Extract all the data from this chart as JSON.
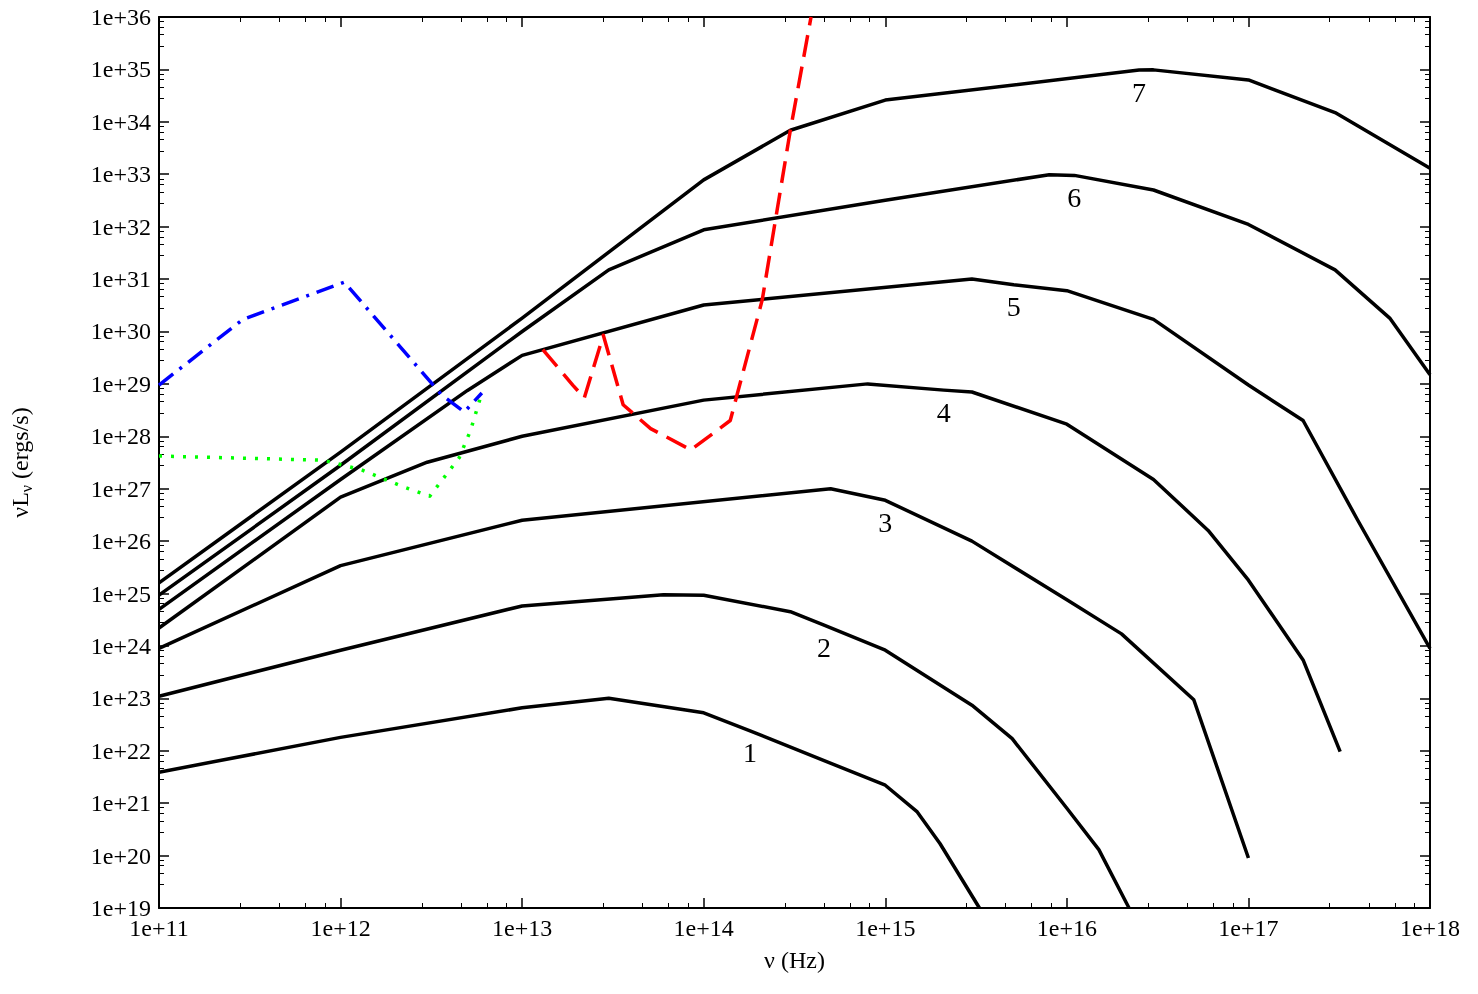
{
  "chart_data": {
    "type": "line",
    "xlabel": "ν (Hz)",
    "ylabel": "νL$_{ν}$ (ergs/s)",
    "log": "xy",
    "grid": false,
    "marker": "none",
    "xlim": [
      100000000000.0,
      1e+18
    ],
    "ylim": [
      1e+19,
      1e+36
    ],
    "xticks": [
      {
        "value": 100000000000.0,
        "label": "1e+11"
      },
      {
        "value": 1000000000000.0,
        "label": "1e+12"
      },
      {
        "value": 10000000000000.0,
        "label": "1e+13"
      },
      {
        "value": 100000000000000.0,
        "label": "1e+14"
      },
      {
        "value": 1000000000000000.0,
        "label": "1e+15"
      },
      {
        "value": 1e+16,
        "label": "1e+16"
      },
      {
        "value": 1e+17,
        "label": "1e+17"
      },
      {
        "value": 1e+18,
        "label": "1e+18"
      }
    ],
    "yticks": [
      {
        "value": 1e+19,
        "label": "1e+19"
      },
      {
        "value": 1e+20,
        "label": "1e+20"
      },
      {
        "value": 1e+21,
        "label": "1e+21"
      },
      {
        "value": 1e+22,
        "label": "1e+22"
      },
      {
        "value": 1e+23,
        "label": "1e+23"
      },
      {
        "value": 1e+24,
        "label": "1e+24"
      },
      {
        "value": 1e+25,
        "label": "1e+25"
      },
      {
        "value": 1e+26,
        "label": "1e+26"
      },
      {
        "value": 1e+27,
        "label": "1e+27"
      },
      {
        "value": 1e+28,
        "label": "1e+28"
      },
      {
        "value": 1e+29,
        "label": "1e+29"
      },
      {
        "value": 1e+30,
        "label": "1e+30"
      },
      {
        "value": 1e+31,
        "label": "1e+31"
      },
      {
        "value": 1e+32,
        "label": "1e+32"
      },
      {
        "value": 1e+33,
        "label": "1e+33"
      },
      {
        "value": 1e+34,
        "label": "1e+34"
      },
      {
        "value": 1e+35,
        "label": "1e+35"
      },
      {
        "value": 1e+36,
        "label": "1e+36"
      }
    ],
    "series": [
      {
        "color": "#000000",
        "line_style": "solid",
        "x": [
          100000000000.0,
          1000000000000.0,
          10000000000000.0,
          30000000000000.0,
          100000000000000.0,
          180000000000000.0,
          1000000000000000.0,
          1500000000000000.0,
          2000000000000000.0,
          3300000000000000.0
        ],
        "values": [
          3.9e+21,
          1.8e+22,
          6.6e+22,
          1e+23,
          5.3e+22,
          2.4e+22,
          2.2e+21,
          6.8e+20,
          1.7e+20,
          1e+19
        ]
      },
      {
        "color": "#000000",
        "line_style": "solid",
        "x": [
          100000000000.0,
          1000000000000.0,
          10000000000000.0,
          60000000000000.0,
          100000000000000.0,
          300000000000000.0,
          460000000000000.0,
          1000000000000000.0,
          3000000000000000.0,
          5000000000000000.0,
          1e+16,
          1.5e+16,
          2.2e+16
        ],
        "values": [
          1.1e+23,
          8.3e+23,
          5.8e+24,
          9.5e+24,
          9.3e+24,
          4.5e+24,
          2.5e+24,
          8.3e+23,
          7.4e+22,
          1.7e+22,
          8e+20,
          1.3e+20,
          1e+19
        ]
      },
      {
        "color": "#000000",
        "line_style": "solid",
        "x": [
          100000000000.0,
          1000000000000.0,
          10000000000000.0,
          500000000000000.0,
          1000000000000000.0,
          3000000000000000.0,
          1e+16,
          2e+16,
          5e+16,
          1e+17
        ],
        "values": [
          9e+23,
          3.4e+25,
          2.5e+26,
          1e+27,
          6e+26,
          1e+26,
          7.6e+24,
          1.7e+24,
          9.4e+22,
          9e+19
        ]
      },
      {
        "color": "#000000",
        "line_style": "solid",
        "x": [
          100000000000.0,
          1000000000000.0,
          3000000000000.0,
          10000000000000.0,
          100000000000000.0,
          800000000000000.0,
          2100000000000000.0,
          3000000000000000.0,
          1e+16,
          3e+16,
          6e+16,
          1e+17,
          2e+17,
          3.2e+17
        ],
        "values": [
          2.2e+24,
          6.9e+26,
          3.2e+27,
          1e+28,
          4.9e+28,
          1e+29,
          7.6e+28,
          7e+28,
          1.7e+28,
          1.5e+27,
          1.6e+26,
          1.8e+25,
          5.4e+23,
          9.6e+21
        ]
      },
      {
        "color": "#000000",
        "line_style": "solid",
        "x": [
          100000000000.0,
          1000000000000.0,
          5000000000000.0,
          10000000000000.0,
          100000000000000.0,
          3000000000000000.0,
          5100000000000000.0,
          1e+16,
          3e+16,
          1e+17,
          2e+17,
          4e+17,
          1e+18
        ],
        "values": [
          5e+24,
          1.5e+27,
          7.5e+28,
          3.5e+29,
          3.2e+30,
          1e+31,
          7.8e+30,
          6e+30,
          1.7e+30,
          9.5e+28,
          2e+28,
          2.5e+26,
          9e+23
        ]
      },
      {
        "color": "#000000",
        "line_style": "solid",
        "x": [
          100000000000.0,
          1000000000000.0,
          10000000000000.0,
          30000000000000.0,
          100000000000000.0,
          1000000000000000.0,
          8000000000000000.0,
          1.1e+16,
          3e+16,
          1e+17,
          3e+17,
          6e+17,
          1e+18
        ],
        "values": [
          9.3e+24,
          2.8e+27,
          1e+30,
          1.5e+31,
          8.7e+31,
          3.2e+32,
          9.8e+32,
          9.5e+32,
          5e+32,
          1.1e+32,
          1.5e+31,
          1.8e+30,
          1.5e+29
        ]
      },
      {
        "color": "#000000",
        "line_style": "solid",
        "x": [
          100000000000.0,
          1000000000000.0,
          10000000000000.0,
          100000000000000.0,
          300000000000000.0,
          1000000000000000.0,
          2.5e+16,
          3e+16,
          1e+17,
          3e+17,
          1e+18
        ],
        "values": [
          1.6e+25,
          5e+27,
          1.8e+30,
          7.8e+32,
          6.9e+33,
          2.6e+34,
          9.7e+34,
          9.8e+34,
          6.3e+34,
          1.5e+34,
          1.3e+33
        ]
      },
      {
        "color": "#0000ff",
        "line_style": "dashdot",
        "x": [
          100000000000.0,
          290000000000.0,
          1050000000000.0,
          3600000000000.0,
          4800000000000.0,
          6000000000000.0
        ],
        "values": [
          9.5e+28,
          1.7e+30,
          8.7e+30,
          6.2e+28,
          2.9e+28,
          6.7e+28
        ]
      },
      {
        "color": "#00ff00",
        "line_style": "dotted",
        "x": [
          100000000000.0,
          800000000000.0,
          1300000000000.0,
          2200000000000.0,
          3100000000000.0,
          4500000000000.0,
          5200000000000.0,
          6000000000000.0
        ],
        "values": [
          4.2e+27,
          3.5e+27,
          2.3e+27,
          1.1e+27,
          7.2e+26,
          3.9e+27,
          1.3e+28,
          6.7e+28
        ]
      },
      {
        "color": "#ff0000",
        "line_style": "dashed",
        "x": [
          13000000000000.0,
          19000000000000.0,
          22000000000000.0,
          28000000000000.0,
          36000000000000.0,
          51000000000000.0,
          85000000000000.0,
          140000000000000.0,
          210000000000000.0,
          300000000000000.0,
          390000000000000.0
        ],
        "values": [
          4.5e+29,
          9.5e+28,
          5.4e+28,
          8.5e+29,
          4e+28,
          1.4e+28,
          5.5e+27,
          2e+28,
          4e+30,
          6.9e+33,
          1e+36
        ]
      }
    ],
    "annotations": [
      {
        "text": "1",
        "x": 180000000000000.0,
        "y": 2.4e+22
      },
      {
        "text": "2",
        "x": 460000000000000.0,
        "y": 2.5e+24
      },
      {
        "text": "3",
        "x": 1000000000000000.0,
        "y": 6e+26
      },
      {
        "text": "4",
        "x": 2100000000000000.0,
        "y": 7.6e+28
      },
      {
        "text": "5",
        "x": 5100000000000000.0,
        "y": 7.8e+30
      },
      {
        "text": "6",
        "x": 1.1e+16,
        "y": 9.5e+32
      },
      {
        "text": "7",
        "x": 2.5e+16,
        "y": 9.7e+34
      }
    ]
  }
}
